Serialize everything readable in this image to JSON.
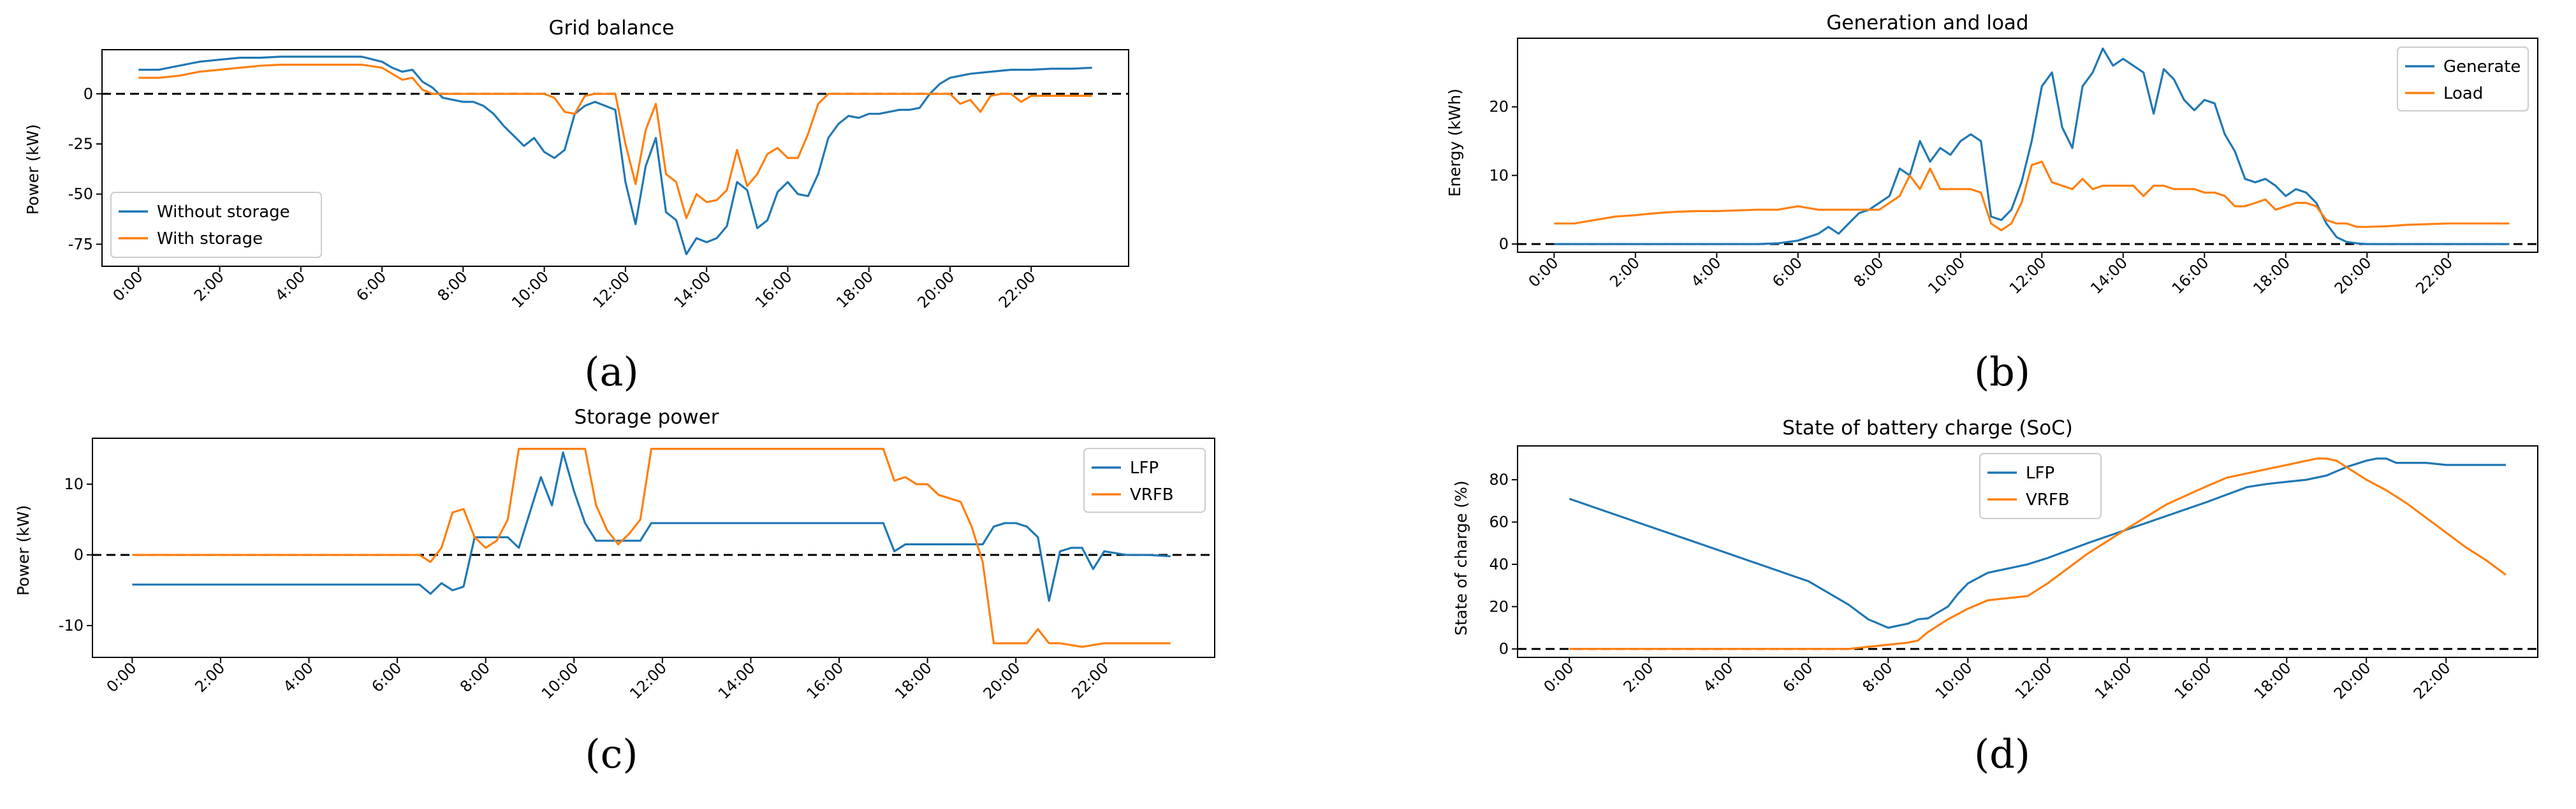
{
  "colors": {
    "blue": "#1f77b4",
    "orange": "#ff7f0e"
  },
  "time_ticks": [
    "0:00",
    "2:00",
    "4:00",
    "6:00",
    "8:00",
    "10:00",
    "12:00",
    "14:00",
    "16:00",
    "18:00",
    "20:00",
    "22:00"
  ],
  "chart_data": [
    {
      "panel_label": "(a)",
      "type": "line",
      "title": "Grid balance",
      "ylabel": "Power (kW)",
      "xlabel": "",
      "ylim": [
        -86,
        22
      ],
      "yticks": [
        "0",
        "-25",
        "-50",
        "-75"
      ],
      "ytick_values": [
        0,
        -25,
        -50,
        -75
      ],
      "reference_line": 0,
      "legend_position": "lower-left",
      "series": [
        {
          "name": "Without storage",
          "color": "#1f77b4",
          "x": [
            0,
            0.5,
            1,
            1.5,
            2,
            2.5,
            3,
            3.5,
            4,
            4.5,
            5,
            5.5,
            6,
            6.25,
            6.5,
            6.75,
            7,
            7.25,
            7.5,
            7.75,
            8,
            8.25,
            8.5,
            8.75,
            9,
            9.25,
            9.5,
            9.75,
            10,
            10.25,
            10.5,
            10.75,
            11,
            11.25,
            11.5,
            11.75,
            12,
            12.25,
            12.5,
            12.75,
            13,
            13.25,
            13.5,
            13.75,
            14,
            14.25,
            14.5,
            14.75,
            15,
            15.25,
            15.5,
            15.75,
            16,
            16.25,
            16.5,
            16.75,
            17,
            17.25,
            17.5,
            17.75,
            18,
            18.25,
            18.5,
            18.75,
            19,
            19.25,
            19.5,
            19.75,
            20,
            20.5,
            21,
            21.5,
            22,
            22.5,
            23,
            23.5
          ],
          "y": [
            12,
            12,
            14,
            16,
            17,
            18,
            18,
            18.5,
            18.5,
            18.5,
            18.5,
            18.5,
            16,
            13,
            11,
            12,
            6,
            3,
            -2,
            -3,
            -4,
            -4,
            -6,
            -10,
            -16,
            -21,
            -26,
            -22,
            -29,
            -32,
            -28,
            -10,
            -6,
            -4,
            -6,
            -8,
            -44,
            -65,
            -36,
            -22,
            -59,
            -63,
            -80,
            -72,
            -74,
            -72,
            -66,
            -44,
            -48,
            -67,
            -63,
            -49,
            -44,
            -50,
            -51,
            -40,
            -22,
            -15,
            -11,
            -12,
            -10,
            -10,
            -9,
            -8,
            -8,
            -7,
            0,
            5,
            8,
            10,
            11,
            12,
            12,
            12.5,
            12.5,
            13
          ]
        },
        {
          "name": "With storage",
          "color": "#ff7f0e",
          "x": [
            0,
            0.5,
            1,
            1.5,
            2,
            2.5,
            3,
            3.5,
            4,
            4.5,
            5,
            5.5,
            6,
            6.25,
            6.5,
            6.75,
            7,
            7.25,
            7.5,
            8,
            8.5,
            9,
            9.5,
            9.75,
            10,
            10.25,
            10.5,
            10.75,
            11,
            11.25,
            11.5,
            11.75,
            12,
            12.25,
            12.5,
            12.75,
            13,
            13.25,
            13.5,
            13.75,
            14,
            14.25,
            14.5,
            14.75,
            15,
            15.25,
            15.5,
            15.75,
            16,
            16.25,
            16.5,
            16.75,
            17,
            17.5,
            18,
            18.5,
            19,
            19.5,
            20,
            20.25,
            20.5,
            20.75,
            21,
            21.25,
            21.5,
            21.75,
            22,
            22.5,
            23,
            23.5
          ],
          "y": [
            8,
            8,
            9,
            11,
            12,
            13,
            14,
            14.5,
            14.5,
            14.5,
            14.5,
            14.5,
            13,
            10,
            7,
            8,
            2,
            0,
            0,
            0,
            0,
            0,
            0,
            0,
            0,
            -2,
            -9,
            -10,
            -1,
            0,
            0,
            0,
            -25,
            -45,
            -18,
            -5,
            -40,
            -44,
            -62,
            -50,
            -54,
            -53,
            -48,
            -28,
            -46,
            -40,
            -30,
            -27,
            -32,
            -32,
            -20,
            -5,
            0,
            0,
            0,
            0,
            0,
            0,
            0,
            -5,
            -3,
            -9,
            -1,
            0,
            0,
            -4,
            -1,
            -1,
            -1,
            -1
          ]
        }
      ]
    },
    {
      "panel_label": "(b)",
      "type": "line",
      "title": "Generation and load",
      "ylabel": "Energy (kWh)",
      "xlabel": "",
      "ylim": [
        -1.2,
        30
      ],
      "yticks": [
        "0",
        "10",
        "20"
      ],
      "ytick_values": [
        0,
        10,
        20
      ],
      "reference_line": 0,
      "legend_position": "top-right",
      "series": [
        {
          "name": "Generate",
          "color": "#1f77b4",
          "x": [
            0,
            1,
            2,
            3,
            4,
            5,
            5.5,
            6,
            6.25,
            6.5,
            6.75,
            7,
            7.25,
            7.5,
            7.75,
            8,
            8.25,
            8.5,
            8.75,
            9,
            9.25,
            9.5,
            9.75,
            10,
            10.25,
            10.5,
            10.75,
            11,
            11.25,
            11.5,
            11.75,
            12,
            12.25,
            12.5,
            12.75,
            13,
            13.25,
            13.5,
            13.75,
            14,
            14.25,
            14.5,
            14.75,
            15,
            15.25,
            15.5,
            15.75,
            16,
            16.25,
            16.5,
            16.75,
            17,
            17.25,
            17.5,
            17.75,
            18,
            18.25,
            18.5,
            18.75,
            19,
            19.25,
            19.5,
            19.75,
            20,
            20.5,
            21,
            22,
            23,
            23.5
          ],
          "y": [
            0,
            0,
            0,
            0,
            0,
            0,
            0.1,
            0.5,
            1,
            1.5,
            2.5,
            1.5,
            3,
            4.5,
            5,
            6,
            7,
            11,
            10,
            15,
            12,
            14,
            13,
            15,
            16,
            15,
            4,
            3.5,
            5,
            9,
            15,
            23,
            25,
            17,
            14,
            23,
            25,
            28.5,
            26,
            27,
            26,
            25,
            19,
            25.5,
            24,
            21,
            19.5,
            21,
            20.5,
            16,
            13.5,
            9.5,
            9,
            9.5,
            8.5,
            7,
            8,
            7.5,
            6,
            3,
            1,
            0.3,
            0.1,
            0,
            0,
            0,
            0,
            0,
            0
          ]
        },
        {
          "name": "Load",
          "color": "#ff7f0e",
          "x": [
            0,
            0.5,
            1,
            1.5,
            2,
            2.5,
            3,
            3.5,
            4,
            4.5,
            5,
            5.5,
            6,
            6.5,
            7,
            7.5,
            8,
            8.25,
            8.5,
            8.75,
            9,
            9.25,
            9.5,
            9.75,
            10,
            10.25,
            10.5,
            10.75,
            11,
            11.25,
            11.5,
            11.75,
            12,
            12.25,
            12.5,
            12.75,
            13,
            13.25,
            13.5,
            13.75,
            14,
            14.25,
            14.5,
            14.75,
            15,
            15.25,
            15.5,
            15.75,
            16,
            16.25,
            16.5,
            16.75,
            17,
            17.25,
            17.5,
            17.75,
            18,
            18.25,
            18.5,
            18.75,
            19,
            19.25,
            19.5,
            19.75,
            20,
            20.5,
            21,
            22,
            23,
            23.5
          ],
          "y": [
            3,
            3,
            3.5,
            4,
            4.2,
            4.5,
            4.7,
            4.8,
            4.8,
            4.9,
            5,
            5,
            5.5,
            5,
            5,
            5,
            5,
            6,
            7,
            10,
            8,
            11,
            8,
            8,
            8,
            8,
            7.5,
            3,
            2,
            3,
            6,
            11.5,
            12,
            9,
            8.5,
            8,
            9.5,
            8,
            8.5,
            8.5,
            8.5,
            8.5,
            7,
            8.5,
            8.5,
            8,
            8,
            8,
            7.5,
            7.5,
            7,
            5.5,
            5.5,
            6,
            6.5,
            5,
            5.5,
            6,
            6,
            5.5,
            3.5,
            3,
            3,
            2.5,
            2.5,
            2.6,
            2.8,
            3,
            3,
            3
          ]
        }
      ]
    },
    {
      "panel_label": "(c)",
      "type": "line",
      "title": "Storage power",
      "ylabel": "Power (kW)",
      "xlabel": "",
      "ylim": [
        -14.5,
        16.5
      ],
      "yticks": [
        "10",
        "0",
        "-10"
      ],
      "ytick_values": [
        10,
        0,
        -10
      ],
      "reference_line": 0,
      "legend_position": "top-right",
      "series": [
        {
          "name": "LFP",
          "color": "#1f77b4",
          "x": [
            0,
            1,
            2,
            3,
            4,
            5,
            6,
            6.5,
            6.75,
            7,
            7.25,
            7.5,
            7.75,
            8,
            8.25,
            8.5,
            8.75,
            9,
            9.25,
            9.5,
            9.75,
            10,
            10.25,
            10.5,
            10.75,
            11,
            11.25,
            11.5,
            11.75,
            12,
            13,
            14,
            15,
            16,
            16.5,
            17,
            17.25,
            17.5,
            18,
            18.5,
            19,
            19.25,
            19.5,
            19.75,
            20,
            20.25,
            20.5,
            20.75,
            21,
            21.25,
            21.5,
            21.75,
            22,
            22.5,
            23,
            23.5
          ],
          "y": [
            -4.2,
            -4.2,
            -4.2,
            -4.2,
            -4.2,
            -4.2,
            -4.2,
            -4.2,
            -5.5,
            -4,
            -5,
            -4.5,
            2.5,
            2.5,
            2.5,
            2.5,
            1,
            6,
            11,
            7,
            14.5,
            9,
            4.5,
            2,
            2,
            2,
            2,
            2,
            4.5,
            4.5,
            4.5,
            4.5,
            4.5,
            4.5,
            4.5,
            4.5,
            0.5,
            1.5,
            1.5,
            1.5,
            1.5,
            1.5,
            4,
            4.5,
            4.5,
            4,
            2.5,
            -6.5,
            0.5,
            1,
            1,
            -2,
            0.5,
            0,
            0,
            -0.2
          ]
        },
        {
          "name": "VRFB",
          "color": "#ff7f0e",
          "x": [
            0,
            1,
            2,
            3,
            4,
            5,
            6,
            6.5,
            6.75,
            7,
            7.25,
            7.5,
            7.75,
            8,
            8.25,
            8.5,
            8.75,
            9,
            9.5,
            10,
            10.25,
            10.5,
            10.75,
            11,
            11.25,
            11.5,
            11.75,
            12,
            13,
            14,
            15,
            16,
            16.5,
            17,
            17.25,
            17.5,
            17.75,
            18,
            18.25,
            18.5,
            18.75,
            19,
            19.25,
            19.5,
            19.75,
            20,
            20.25,
            20.5,
            20.75,
            21,
            21.5,
            22,
            22.5,
            23,
            23.5
          ],
          "y": [
            0,
            0,
            0,
            0,
            0,
            0,
            0,
            0,
            -1,
            1,
            6,
            6.5,
            2.5,
            1,
            2,
            5,
            15,
            15,
            15,
            15,
            15,
            7,
            3.5,
            1.5,
            3,
            5,
            15,
            15,
            15,
            15,
            15,
            15,
            15,
            15,
            10.5,
            11,
            10,
            10,
            8.5,
            8,
            7.5,
            4,
            -1,
            -12.5,
            -12.5,
            -12.5,
            -12.5,
            -10.5,
            -12.5,
            -12.5,
            -13,
            -12.5,
            -12.5,
            -12.5,
            -12.5
          ]
        }
      ]
    },
    {
      "panel_label": "(d)",
      "type": "line",
      "title": "State of battery charge (SoC)",
      "ylabel": "State of charge (%)",
      "xlabel": "",
      "ylim": [
        -4,
        96
      ],
      "yticks": [
        "80",
        "60",
        "40",
        "20",
        "0"
      ],
      "ytick_values": [
        80,
        60,
        40,
        20,
        0
      ],
      "reference_line": 0,
      "legend_position": "top-center",
      "series": [
        {
          "name": "LFP",
          "color": "#1f77b4",
          "x": [
            0,
            1,
            2,
            3,
            4,
            5,
            6,
            7,
            7.5,
            8,
            8.5,
            8.75,
            9,
            9.5,
            9.75,
            10,
            10.25,
            10.5,
            11,
            11.5,
            12,
            13,
            14,
            15,
            16,
            16.5,
            17,
            17.5,
            18,
            18.5,
            19,
            19.5,
            20,
            20.25,
            20.5,
            20.75,
            21,
            21.5,
            22,
            22.5,
            23,
            23.5
          ],
          "y": [
            71,
            64.5,
            58,
            51.5,
            45,
            38.5,
            32,
            21,
            14,
            10,
            12,
            14,
            14.5,
            20,
            26,
            31,
            33.5,
            36,
            38,
            40,
            43,
            50,
            56.5,
            63,
            69.5,
            73,
            76.5,
            78,
            79,
            80,
            82,
            86,
            89,
            90,
            90,
            88,
            88,
            88,
            87,
            87,
            87,
            87
          ]
        },
        {
          "name": "VRFB",
          "color": "#ff7f0e",
          "x": [
            0,
            1,
            2,
            3,
            4,
            5,
            6,
            7,
            7.5,
            8,
            8.5,
            8.75,
            9,
            9.5,
            10,
            10.5,
            11,
            11.5,
            12,
            13,
            14,
            15,
            16,
            16.5,
            17,
            17.5,
            18,
            18.5,
            18.75,
            19,
            19.25,
            19.5,
            20,
            20.5,
            21,
            21.5,
            22,
            22.5,
            23,
            23.5
          ],
          "y": [
            0,
            0,
            0,
            0,
            0,
            0,
            0,
            0,
            1,
            2,
            3,
            4,
            8,
            14,
            19,
            23,
            24,
            25,
            31,
            45,
            57,
            68.5,
            77,
            81,
            83,
            85,
            87,
            89,
            90,
            90,
            89,
            86,
            80,
            75,
            69,
            62,
            55,
            48,
            42,
            35
          ]
        }
      ]
    }
  ]
}
